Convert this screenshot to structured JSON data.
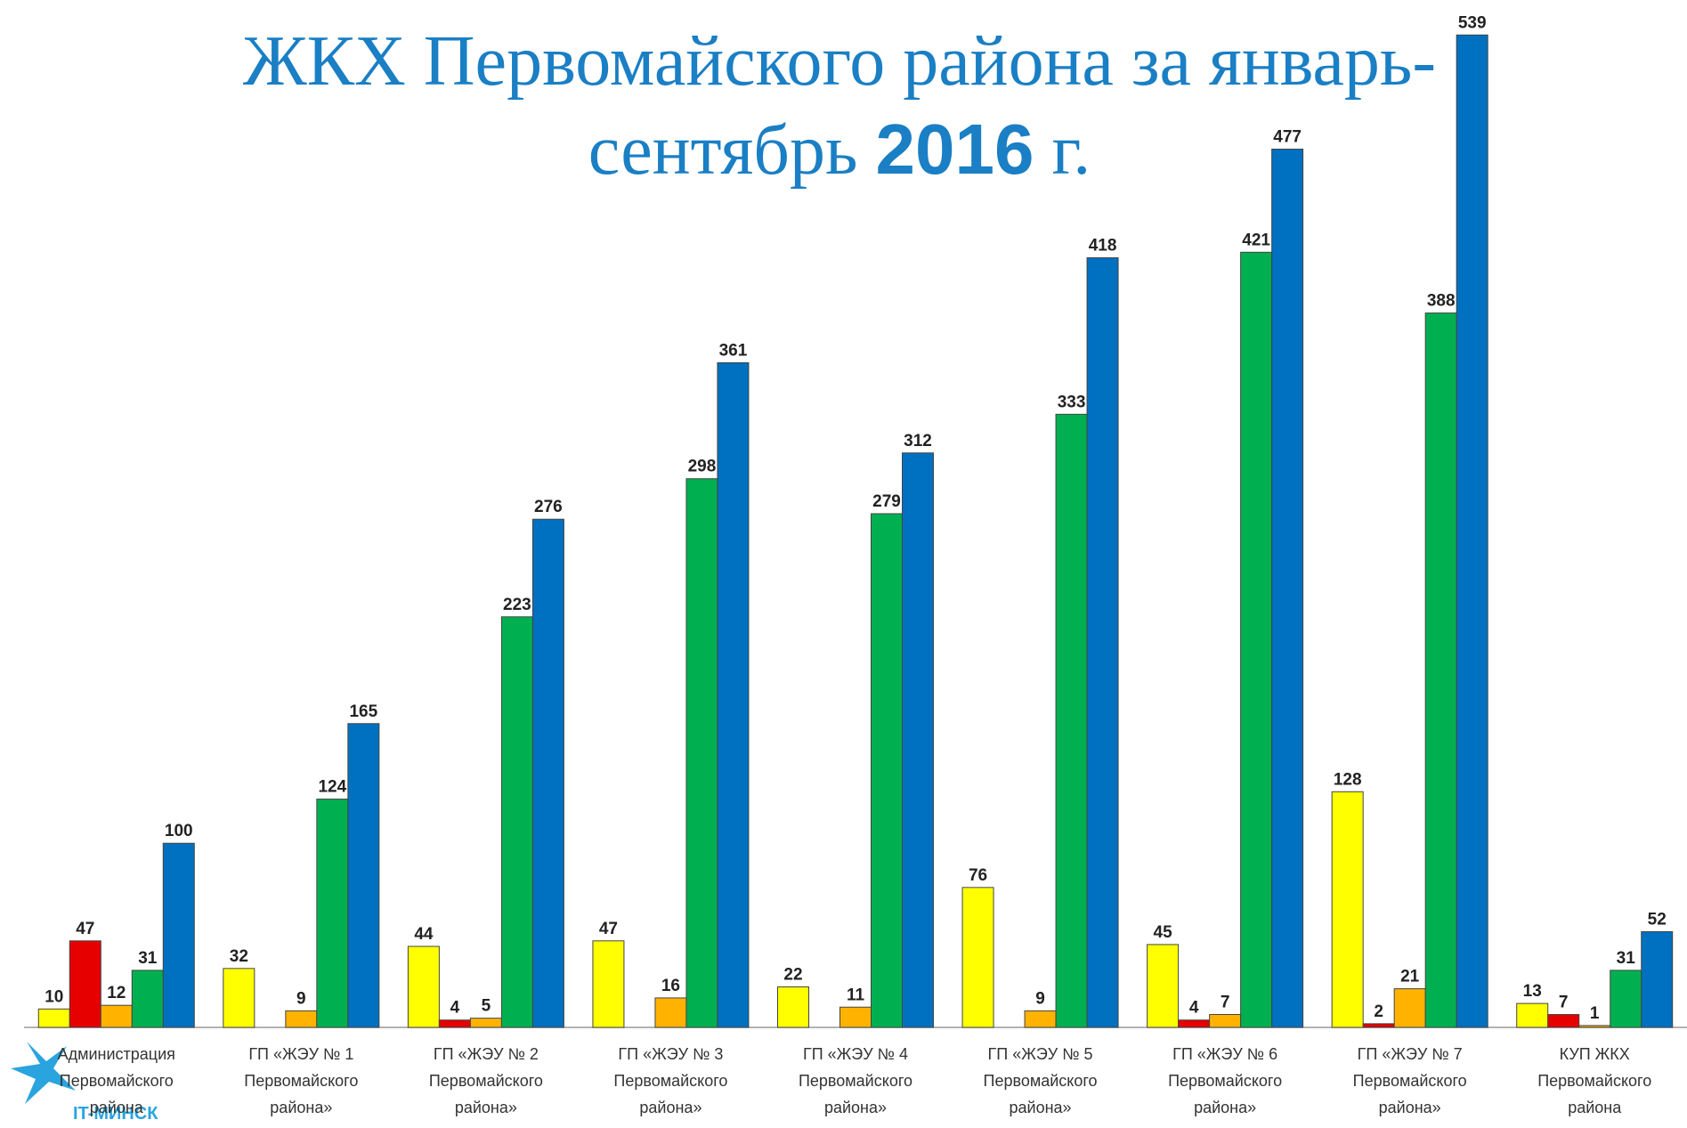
{
  "chart_data": {
    "type": "bar",
    "title": "ЖКХ Первомайского района за январь-",
    "title_line2": [
      "сентябрь ",
      "2016",
      " г."
    ],
    "logo": "IT-МИНСК",
    "categories": [
      "Администрация\nПервомайского\nрайона",
      "ГП «ЖЭУ № 1\nПервомайского\nрайона»",
      "ГП «ЖЭУ № 2\nПервомайского\nрайона»",
      "ГП «ЖЭУ № 3\nПервомайского\nрайона»",
      "ГП «ЖЭУ № 4\nПервомайского\nрайона»",
      "ГП «ЖЭУ № 5\nПервомайского\nрайона»",
      "ГП «ЖЭУ № 6\nПервомайского\nрайона»",
      "ГП «ЖЭУ № 7\nПервомайского\nрайона»",
      "КУП ЖКХ\nПервомайского\nрайона"
    ],
    "series": [
      {
        "color": "#ffff00",
        "values": [
          10,
          32,
          44,
          47,
          22,
          76,
          45,
          128,
          13
        ]
      },
      {
        "color": "#e60000",
        "values": [
          47,
          null,
          4,
          null,
          null,
          null,
          4,
          2,
          7
        ]
      },
      {
        "color": "#ffb300",
        "values": [
          12,
          9,
          5,
          16,
          11,
          9,
          7,
          21,
          1
        ]
      },
      {
        "color": "#00b050",
        "values": [
          31,
          124,
          223,
          298,
          279,
          333,
          421,
          388,
          31
        ]
      },
      {
        "color": "#0070c0",
        "values": [
          100,
          165,
          276,
          361,
          312,
          418,
          477,
          539,
          52
        ]
      }
    ],
    "ylim": [
      0,
      558
    ]
  }
}
